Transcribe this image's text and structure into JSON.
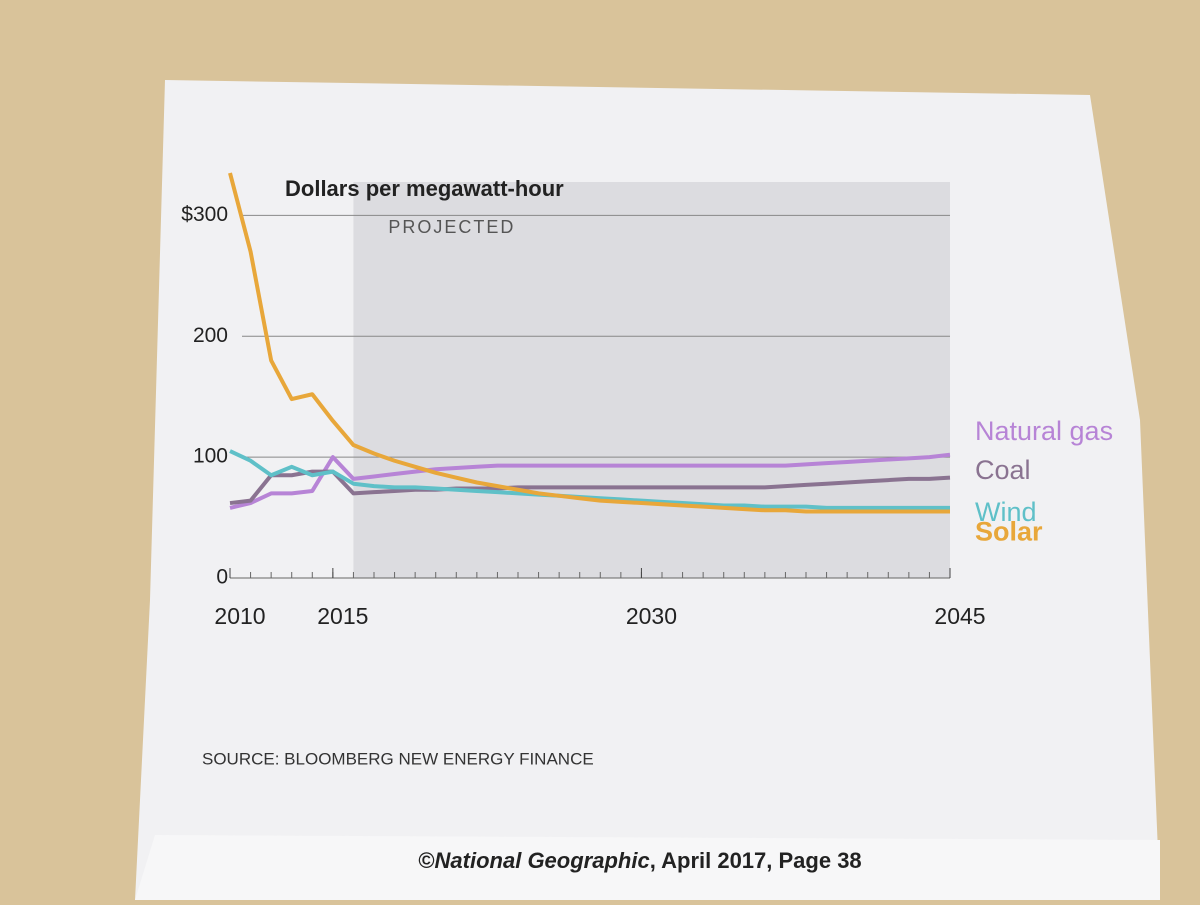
{
  "chart_data": {
    "type": "line",
    "title": "Dollars per megawatt-hour",
    "annotation": "PROJECTED",
    "source": "SOURCE: BLOOMBERG NEW ENERGY FINANCE",
    "projected_range": [
      2016,
      2045
    ],
    "x": [
      2010,
      2011,
      2012,
      2013,
      2014,
      2015,
      2016,
      2017,
      2018,
      2019,
      2020,
      2021,
      2022,
      2023,
      2024,
      2025,
      2026,
      2027,
      2028,
      2029,
      2030,
      2031,
      2032,
      2033,
      2034,
      2035,
      2036,
      2037,
      2038,
      2039,
      2040,
      2041,
      2042,
      2043,
      2044,
      2045
    ],
    "xlim": [
      2010,
      2045
    ],
    "xticks": [
      2010,
      2015,
      2030,
      2045
    ],
    "ylim": [
      0,
      340
    ],
    "yticks": [
      0,
      100,
      200,
      {
        "value": 300,
        "label": "$300"
      }
    ],
    "grid": true,
    "series": [
      {
        "name": "Natural gas",
        "color": "#b784d6",
        "values": [
          58,
          62,
          70,
          70,
          72,
          100,
          82,
          84,
          86,
          88,
          90,
          91,
          92,
          93,
          93,
          93,
          93,
          93,
          93,
          93,
          93,
          93,
          93,
          93,
          93,
          93,
          93,
          93,
          94,
          95,
          96,
          97,
          98,
          99,
          100,
          102
        ]
      },
      {
        "name": "Coal",
        "color": "#8a7391",
        "values": [
          62,
          64,
          85,
          85,
          88,
          88,
          70,
          71,
          72,
          73,
          73,
          74,
          74,
          74,
          75,
          75,
          75,
          75,
          75,
          75,
          75,
          75,
          75,
          75,
          75,
          75,
          75,
          76,
          77,
          78,
          79,
          80,
          81,
          82,
          82,
          83
        ]
      },
      {
        "name": "Wind",
        "color": "#5fc0c8",
        "values": [
          105,
          97,
          85,
          92,
          85,
          88,
          78,
          76,
          75,
          75,
          74,
          73,
          72,
          71,
          70,
          69,
          68,
          67,
          66,
          65,
          64,
          63,
          62,
          61,
          60,
          60,
          59,
          59,
          59,
          58,
          58,
          58,
          58,
          58,
          58,
          58
        ]
      },
      {
        "name": "Solar",
        "color": "#e8a73a",
        "values": [
          335,
          270,
          180,
          148,
          152,
          130,
          110,
          103,
          97,
          92,
          87,
          83,
          79,
          76,
          73,
          70,
          68,
          66,
          64,
          63,
          62,
          61,
          60,
          59,
          58,
          57,
          56,
          56,
          55,
          55,
          55,
          55,
          55,
          55,
          55,
          55
        ]
      }
    ]
  },
  "footer": {
    "symbol": "©",
    "publication": "National Geographic",
    "details": ", April 2017, Page 38"
  }
}
